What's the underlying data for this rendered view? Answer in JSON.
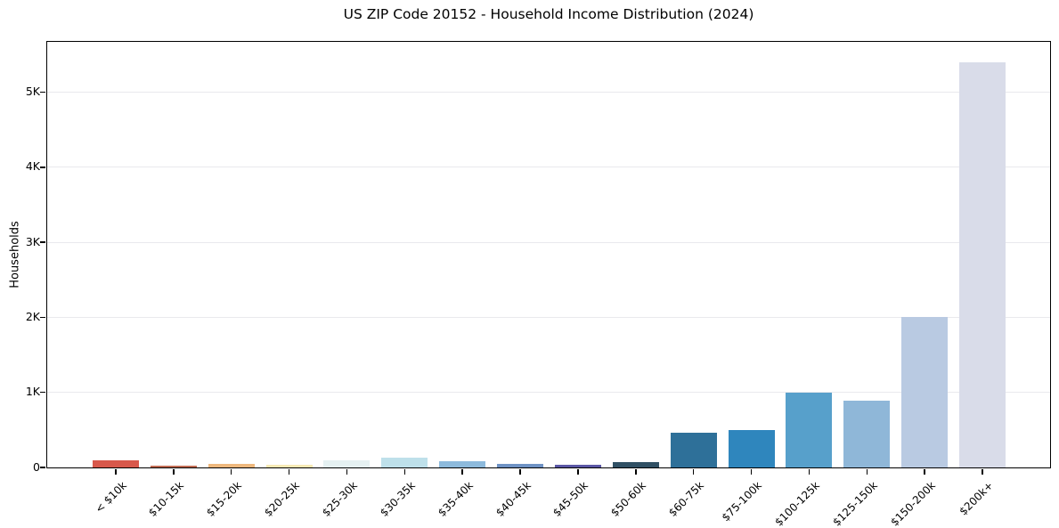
{
  "figure": {
    "title": "US ZIP Code 20152 - Household Income Distribution (2024)"
  },
  "chart_data": {
    "type": "bar",
    "title": "US ZIP Code 20152 - Household Income Distribution (2024)",
    "xlabel": "",
    "ylabel": "Households",
    "categories": [
      "< $10k",
      "$10-15k",
      "$15-20k",
      "$20-25k",
      "$25-30k",
      "$30-35k",
      "$35-40k",
      "$40-45k",
      "$45-50k",
      "$50-60k",
      "$60-75k",
      "$75-100k",
      "$100-125k",
      "$125-150k",
      "$150-200k",
      "$200k+"
    ],
    "values": [
      95,
      25,
      50,
      30,
      100,
      135,
      80,
      50,
      40,
      70,
      460,
      500,
      1000,
      890,
      2010,
      5400
    ],
    "bar_colors": [
      "#d8584b",
      "#c06b53",
      "#eeb87d",
      "#f7e9b4",
      "#e5f1f2",
      "#bee0ea",
      "#8dbadc",
      "#6e92c4",
      "#5a57a5",
      "#305064",
      "#2e7099",
      "#2f86bd",
      "#57a0cb",
      "#8fb7d8",
      "#b9cae2",
      "#d9dce9"
    ],
    "y_ticks": [
      "0",
      "1K",
      "2K",
      "3K",
      "4K",
      "5K"
    ],
    "y_tick_values": [
      0,
      1000,
      2000,
      3000,
      4000,
      5000
    ],
    "ylim": [
      0,
      5660
    ],
    "grid": "horizontal",
    "legend": "none",
    "background_color": "#ffffff",
    "spine_color": "#000000",
    "grid_color": "#e9e9ed"
  }
}
